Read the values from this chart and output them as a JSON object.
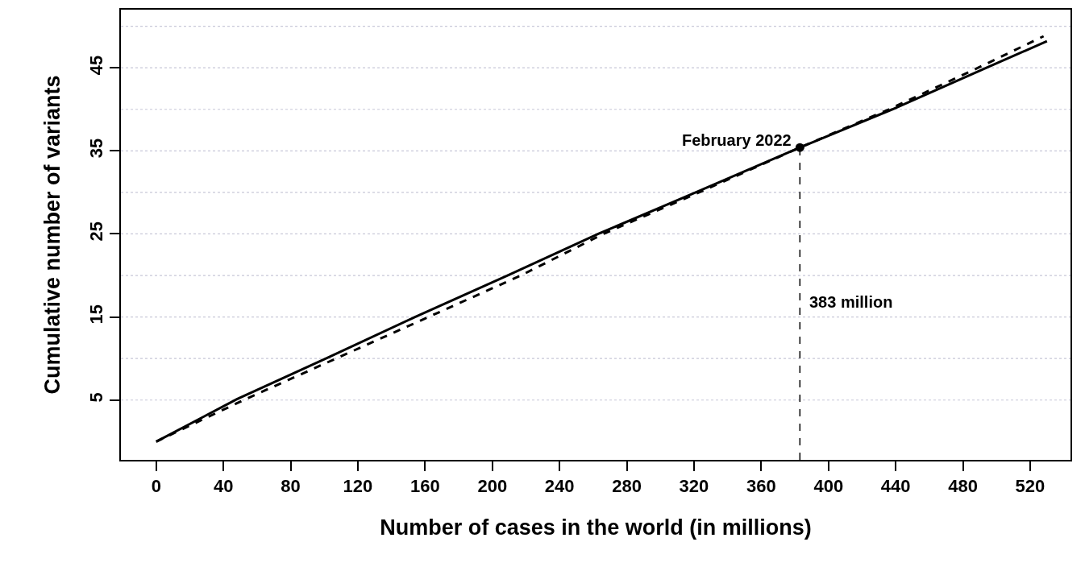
{
  "chart_data": {
    "type": "line",
    "xlabel": "Number of cases in the world (in millions)",
    "ylabel": "Cumulative number of variants",
    "series": [
      {
        "color": "#000000",
        "line_style": "solid",
        "marker": "none",
        "x": [
          0,
          48,
          101,
          154,
          209,
          263,
          321,
          383,
          438,
          494,
          530
        ],
        "values": [
          0,
          5.1,
          10,
          15,
          20,
          25,
          30,
          35.4,
          40,
          45,
          48.2
        ]
      },
      {
        "color": "#000000",
        "line_style": "dashed",
        "marker": "none",
        "x": [
          0,
          52,
          107,
          162,
          217,
          266,
          323,
          383,
          436,
          489,
          528
        ],
        "values": [
          0,
          5,
          10,
          15,
          20,
          25,
          30,
          35.4,
          40,
          45,
          48.8
        ]
      },
      {
        "type": "scatter",
        "color": "#000000",
        "marker": "circle",
        "x": [
          383
        ],
        "values": [
          35.4
        ]
      }
    ],
    "annotations": [
      {
        "text": "February 2022",
        "x": 383,
        "y": 35.4
      }
    ],
    "ref_lines": [
      {
        "axis": "x",
        "value": 383,
        "label": "383 million",
        "color": "#000000",
        "line_style": "dashed"
      }
    ],
    "xlim": [
      -21,
      544
    ],
    "xticks": [
      0,
      40,
      80,
      120,
      160,
      200,
      240,
      280,
      320,
      360,
      400,
      440,
      480,
      520
    ],
    "ylim": [
      -2.2,
      52
    ],
    "yticks": [
      5,
      {
        "value": 10,
        "label": null
      },
      15,
      {
        "value": 20,
        "label": null
      },
      25,
      {
        "value": 30,
        "label": null
      },
      35,
      {
        "value": 40,
        "label": null
      },
      45,
      {
        "value": 50,
        "label": null
      }
    ],
    "grid": "y"
  }
}
